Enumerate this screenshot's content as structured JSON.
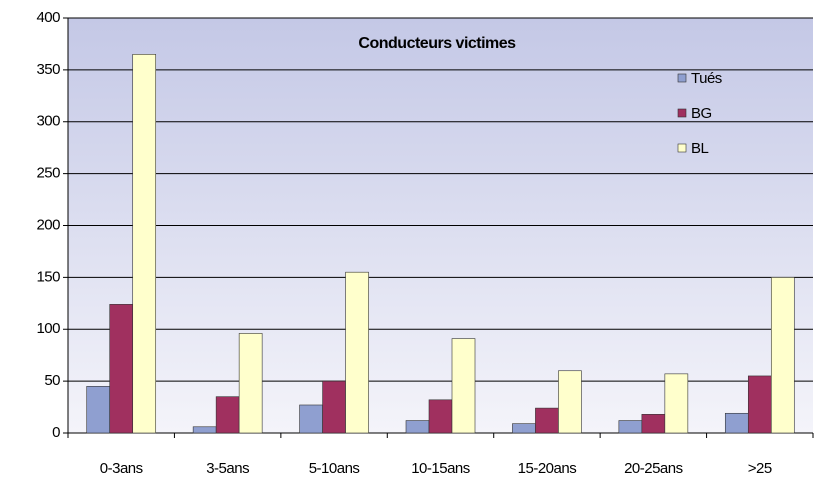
{
  "chart_data": {
    "type": "bar",
    "title": "Conducteurs victimes",
    "categories": [
      "0-3ans",
      "3-5ans",
      "5-10ans",
      "10-15ans",
      "15-20ans",
      "20-25ans",
      ">25"
    ],
    "series": [
      {
        "name": "Tués",
        "color": "#8f9fd0",
        "values": [
          45,
          6,
          27,
          12,
          9,
          12,
          19
        ]
      },
      {
        "name": "BG",
        "color": "#a0305f",
        "values": [
          124,
          35,
          50,
          32,
          24,
          18,
          55
        ]
      },
      {
        "name": "BL",
        "color": "#ffffcc",
        "values": [
          365,
          96,
          155,
          91,
          60,
          57,
          150
        ]
      }
    ],
    "ylim": [
      0,
      400
    ],
    "yticks": [
      0,
      50,
      100,
      150,
      200,
      250,
      300,
      350,
      400
    ],
    "grid": true,
    "legend": "top-right"
  }
}
